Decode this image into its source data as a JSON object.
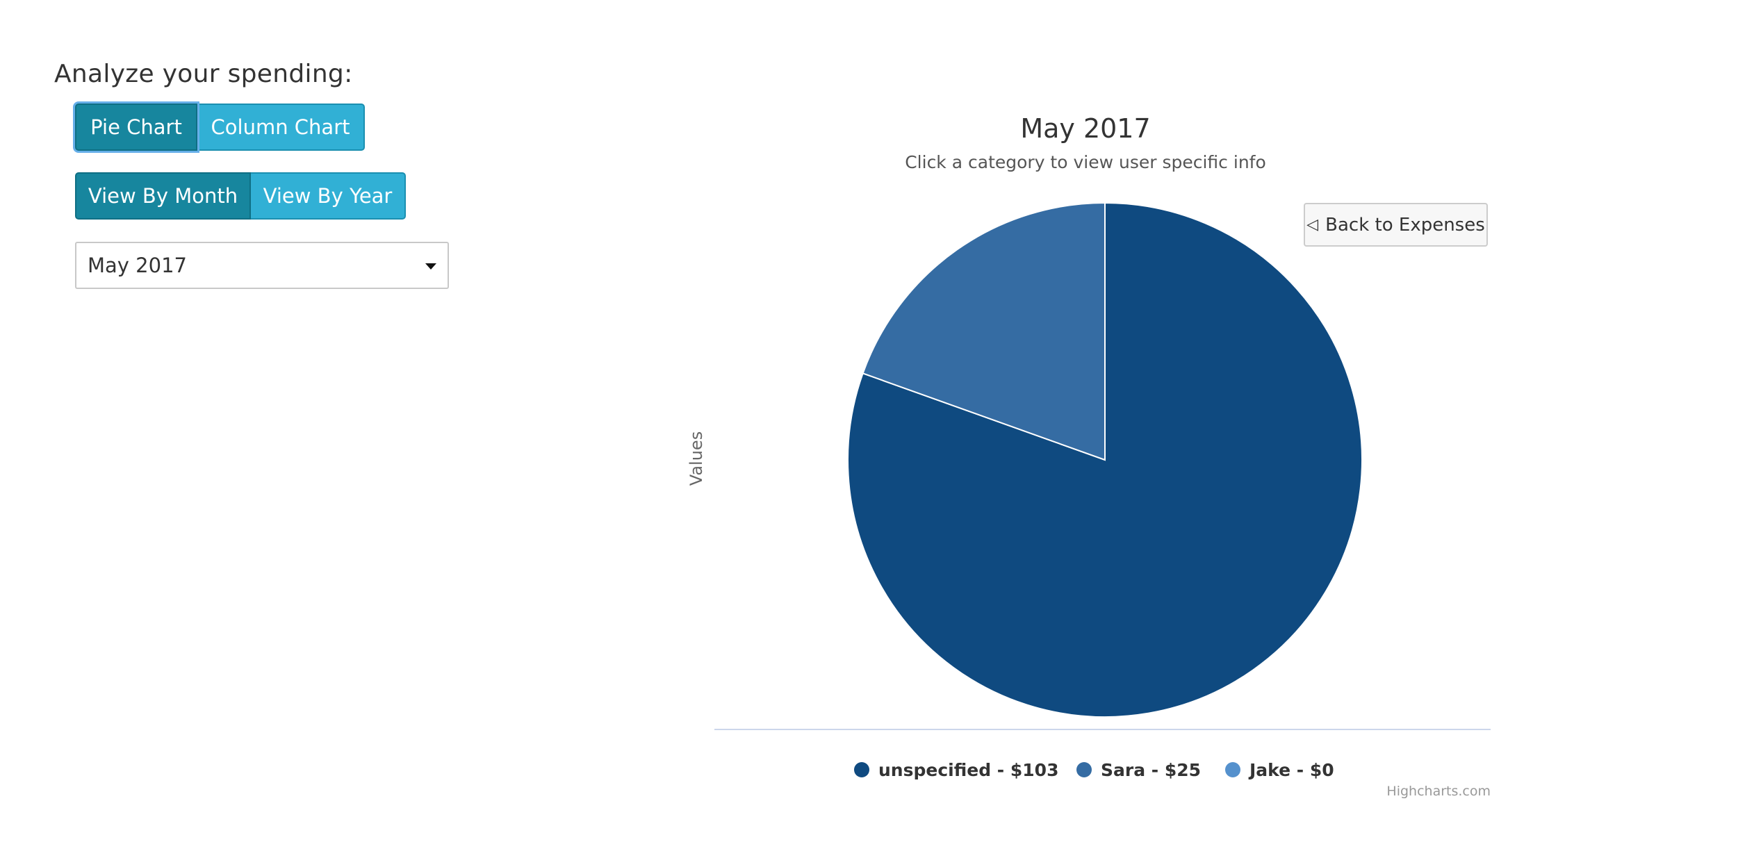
{
  "page": {
    "heading": "Analyze your spending:"
  },
  "chart_type_buttons": [
    {
      "label": "Pie Chart",
      "selected": true
    },
    {
      "label": "Column Chart",
      "selected": false
    }
  ],
  "view_buttons": [
    {
      "label": "View By Month",
      "selected": true
    },
    {
      "label": "View By Year",
      "selected": false
    }
  ],
  "period_select": {
    "value": "May 2017"
  },
  "back_button": {
    "icon": "triangle-left-icon",
    "label": "Back to Expenses"
  },
  "credits": "Highcharts.com",
  "chart_data": {
    "type": "pie",
    "title": "May 2017",
    "subtitle": "Click a category to view user specific info",
    "ylabel": "Values",
    "legend": "bottom",
    "series": [
      {
        "slices": [
          {
            "name": "unspecified",
            "value": 103,
            "legend_label": "unspecified - $103",
            "color": "#0f4a80"
          },
          {
            "name": "Sara",
            "value": 25,
            "legend_label": "Sara - $25",
            "color": "#356ca3"
          },
          {
            "name": "Jake",
            "value": 0,
            "legend_label": "Jake - $0",
            "color": "#5591cd"
          }
        ]
      }
    ]
  }
}
